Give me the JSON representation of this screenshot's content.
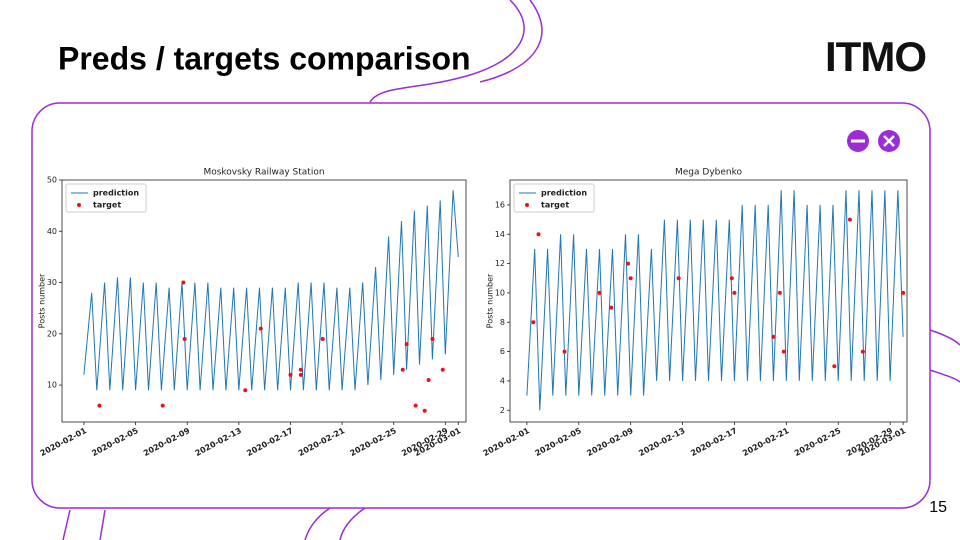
{
  "title": "Preds / targets comparison",
  "logo": "ITMO",
  "page_number": "15",
  "chart_data": [
    {
      "type": "line",
      "title": "Moskovsky Railway Station",
      "ylabel": "Posts number",
      "xlim": [
        -1.7,
        29.6
      ],
      "ylim": [
        2.8,
        50
      ],
      "xticks": [
        {
          "value": 0,
          "label": "2020-02-01"
        },
        {
          "value": 4,
          "label": "2020-02-05"
        },
        {
          "value": 8,
          "label": "2020-02-09"
        },
        {
          "value": 12,
          "label": "2020-02-13"
        },
        {
          "value": 16,
          "label": "2020-02-17"
        },
        {
          "value": 20,
          "label": "2020-02-21"
        },
        {
          "value": 24,
          "label": "2020-02-25"
        },
        {
          "value": 28,
          "label": "2020-02-29"
        },
        {
          "value": 29,
          "label": "2020-03-01"
        }
      ],
      "yticks": [
        10,
        20,
        30,
        40,
        50
      ],
      "legend": "upper left",
      "series": [
        {
          "name": "prediction",
          "kind": "line",
          "color": "#1f77b4",
          "x": [
            0,
            0.6,
            1,
            1.6,
            2,
            2.6,
            3,
            3.6,
            4,
            4.6,
            5,
            5.6,
            6,
            6.6,
            7,
            7.6,
            8,
            8.6,
            9,
            9.6,
            10,
            10.6,
            11,
            11.6,
            12,
            12.6,
            13,
            13.6,
            14,
            14.6,
            15,
            15.6,
            16,
            16.6,
            17,
            17.6,
            18,
            18.6,
            19,
            19.6,
            20,
            20.6,
            21,
            21.6,
            22,
            22.6,
            23,
            23.6,
            24,
            24.6,
            25,
            25.6,
            26,
            26.6,
            27,
            27.6,
            28,
            28.6,
            29
          ],
          "values": [
            12,
            28,
            9,
            30,
            9,
            31,
            9,
            31,
            9,
            30,
            9,
            30,
            9,
            29,
            9,
            30,
            9,
            30,
            9,
            30,
            9,
            29,
            9,
            29,
            9,
            29,
            9,
            29,
            9,
            29,
            9,
            29,
            9,
            30,
            9,
            30,
            9,
            30,
            9,
            29,
            9,
            29,
            9,
            30,
            10,
            33,
            11,
            39,
            12,
            42,
            13,
            44,
            14,
            45,
            15,
            46,
            16,
            48,
            35
          ]
        },
        {
          "name": "target",
          "kind": "points",
          "color": "#e8141a",
          "x": [
            1.2,
            6.1,
            7.7,
            7.8,
            12.5,
            13.7,
            16,
            16.8,
            16.8,
            18.5,
            24.7,
            25,
            25.7,
            26.4,
            26.7,
            27,
            27.8
          ],
          "values": [
            6,
            6,
            30,
            19,
            9,
            21,
            12,
            13,
            12,
            19,
            13,
            18,
            6,
            5,
            11,
            19,
            13
          ]
        }
      ]
    },
    {
      "type": "line",
      "title": "Mega Dybenko",
      "ylabel": "Posts number",
      "xlim": [
        -1.3,
        29.3
      ],
      "ylim": [
        1.2,
        17.7
      ],
      "xticks": [
        {
          "value": 0,
          "label": "2020-02-01"
        },
        {
          "value": 4,
          "label": "2020-02-05"
        },
        {
          "value": 8,
          "label": "2020-02-09"
        },
        {
          "value": 12,
          "label": "2020-02-13"
        },
        {
          "value": 16,
          "label": "2020-02-17"
        },
        {
          "value": 20,
          "label": "2020-02-21"
        },
        {
          "value": 24,
          "label": "2020-02-25"
        },
        {
          "value": 28,
          "label": "2020-02-29"
        },
        {
          "value": 29,
          "label": "2020-03-01"
        }
      ],
      "yticks": [
        2,
        4,
        6,
        8,
        10,
        12,
        14,
        16
      ],
      "legend": "upper left",
      "series": [
        {
          "name": "prediction",
          "kind": "line",
          "color": "#1f77b4",
          "x": [
            0,
            0.6,
            1,
            1.6,
            2,
            2.6,
            3,
            3.6,
            4,
            4.6,
            5,
            5.6,
            6,
            6.6,
            7,
            7.6,
            8,
            8.6,
            9,
            9.6,
            10,
            10.6,
            11,
            11.6,
            12,
            12.6,
            13,
            13.6,
            14,
            14.6,
            15,
            15.6,
            16,
            16.6,
            17,
            17.6,
            18,
            18.6,
            19,
            19.6,
            20,
            20.6,
            21,
            21.6,
            22,
            22.6,
            23,
            23.6,
            24,
            24.6,
            25,
            25.6,
            26,
            26.6,
            27,
            27.6,
            28,
            28.6,
            29
          ],
          "values": [
            3,
            13,
            2,
            13,
            3,
            14,
            3,
            14,
            3,
            13,
            3,
            13,
            3,
            13,
            3,
            14,
            3,
            14,
            3,
            13,
            4,
            15,
            4,
            15,
            4,
            15,
            4,
            15,
            4,
            15,
            4,
            15,
            4,
            16,
            4,
            16,
            4,
            16,
            4,
            17,
            4,
            17,
            4,
            16,
            4,
            16,
            4,
            16,
            4,
            17,
            4,
            17,
            4,
            17,
            4,
            17,
            4,
            17,
            7
          ]
        },
        {
          "name": "target",
          "kind": "points",
          "color": "#e8141a",
          "x": [
            0.5,
            0.9,
            2.9,
            5.6,
            6.5,
            7.8,
            8,
            11.7,
            15.8,
            16,
            19,
            19.5,
            19.8,
            23.7,
            24.9,
            25.9,
            29
          ],
          "values": [
            8,
            14,
            6,
            10,
            9,
            12,
            11,
            11,
            11,
            10,
            7,
            10,
            6,
            5,
            15,
            6,
            10
          ]
        }
      ]
    }
  ]
}
